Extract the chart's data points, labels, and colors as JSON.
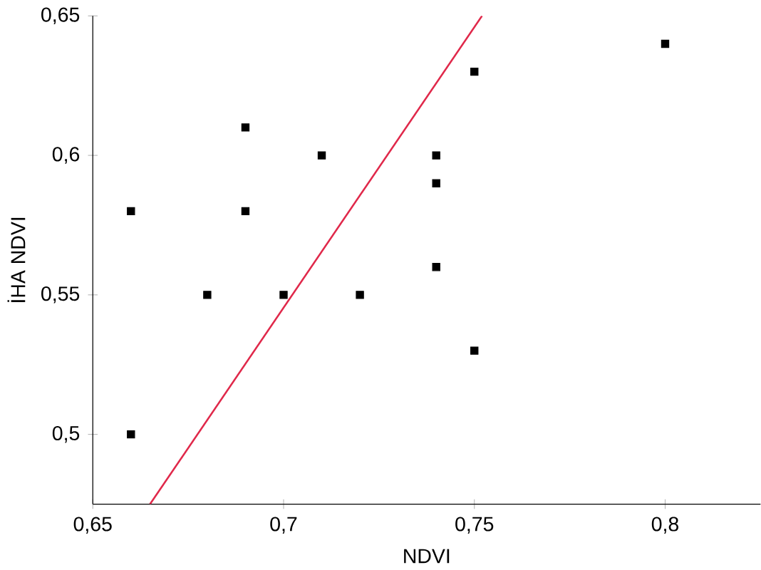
{
  "chart_data": {
    "type": "scatter",
    "xlabel": "NDVI",
    "ylabel": "İHA NDVI",
    "marker": "square",
    "grid": false,
    "xlim": [
      0.65,
      0.825
    ],
    "ylim": [
      0.475,
      0.65
    ],
    "xticks": [
      {
        "value": 0.65,
        "label": "0,65"
      },
      {
        "value": 0.7,
        "label": "0,7"
      },
      {
        "value": 0.75,
        "label": "0,75"
      },
      {
        "value": 0.8,
        "label": "0,8"
      }
    ],
    "yticks": [
      {
        "value": 0.5,
        "label": "0,5"
      },
      {
        "value": 0.55,
        "label": "0,55"
      },
      {
        "value": 0.6,
        "label": "0,6"
      },
      {
        "value": 0.65,
        "label": "0,65"
      }
    ],
    "series": [
      {
        "color": "#000000",
        "x": [
          0.66,
          0.66,
          0.68,
          0.69,
          0.69,
          0.7,
          0.71,
          0.72,
          0.74,
          0.74,
          0.74,
          0.75,
          0.75,
          0.8
        ],
        "values": [
          0.58,
          0.5,
          0.55,
          0.61,
          0.58,
          0.55,
          0.6,
          0.55,
          0.6,
          0.59,
          0.56,
          0.63,
          0.53,
          0.64
        ]
      },
      {
        "type": "line",
        "color": "#e0284a",
        "marker": "none",
        "x": [
          0.665,
          0.752
        ],
        "values": [
          0.475,
          0.65
        ]
      }
    ]
  }
}
